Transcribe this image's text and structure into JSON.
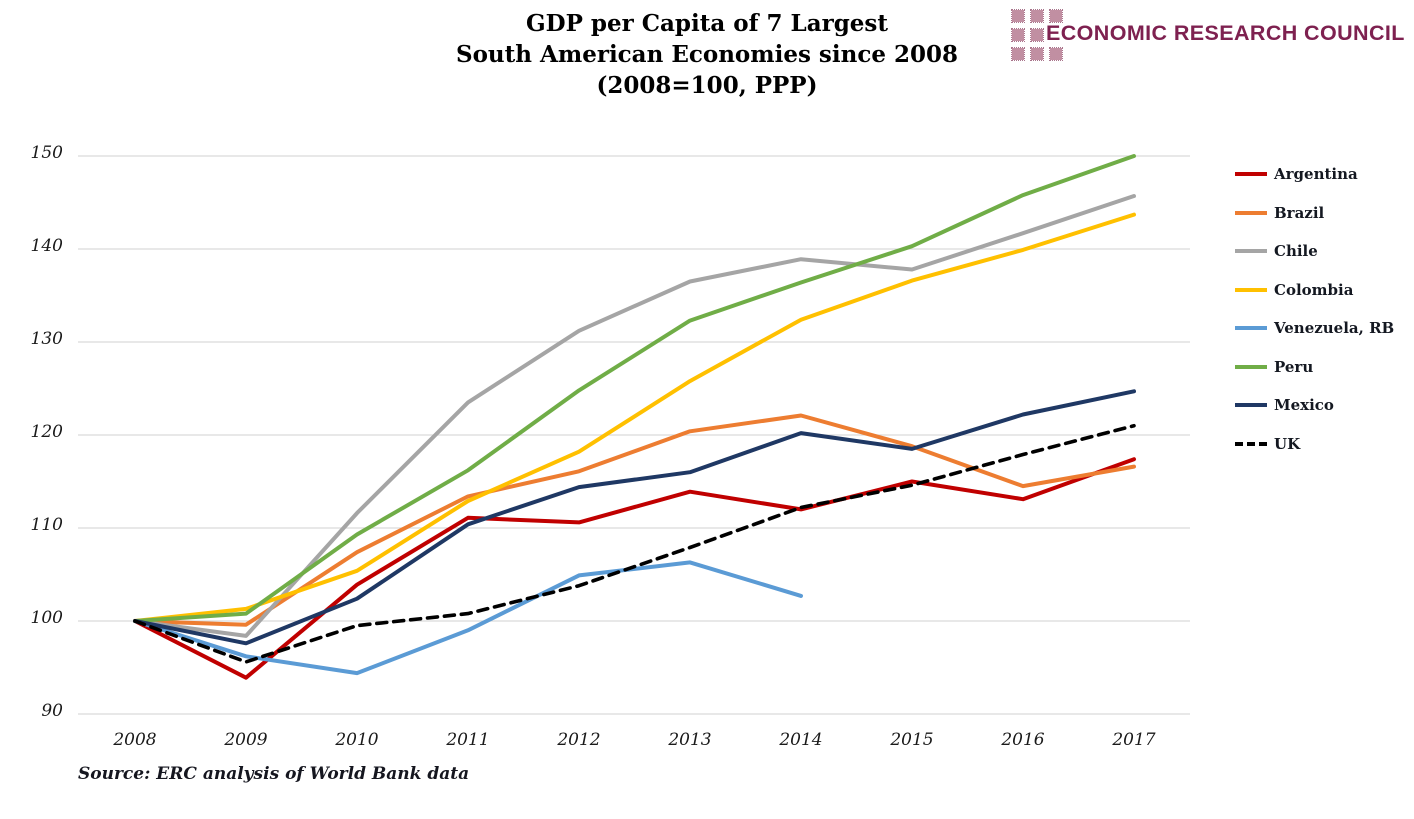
{
  "title": {
    "lines": [
      "GDP per Capita of 7 Largest",
      "South American Economies since 2008",
      "(2008=100, PPP)"
    ]
  },
  "logo": {
    "name": "economic-research-council-logo",
    "text": "ECONOMIC RESEARCH COUNCIL",
    "square_color": "#c18fa2",
    "text_color": "#7e2150",
    "square_rows": [
      3,
      2,
      3
    ]
  },
  "source_note": "Source: ERC analysis of World Bank data",
  "chart_data": {
    "type": "line",
    "title": "GDP per Capita of 7 Largest South American Economies since 2008 (2008=100, PPP)",
    "x": [
      2008,
      2009,
      2010,
      2011,
      2012,
      2013,
      2014,
      2015,
      2016,
      2017
    ],
    "xlabel": "",
    "ylabel": "",
    "ylim": [
      90,
      150
    ],
    "yticks": [
      90,
      100,
      110,
      120,
      130,
      140,
      150
    ],
    "grid": true,
    "gridline_color": "#d9d9d9",
    "legend_position": "right",
    "series": [
      {
        "name": "Argentina",
        "color": "#c00000",
        "dash": false,
        "values": [
          100,
          93.9,
          103.9,
          111.1,
          110.6,
          113.9,
          112.0,
          115.0,
          113.1,
          117.4
        ]
      },
      {
        "name": "Brazil",
        "color": "#ed7d31",
        "dash": false,
        "values": [
          100,
          99.6,
          107.4,
          113.4,
          116.1,
          120.4,
          122.1,
          118.8,
          114.5,
          116.6
        ]
      },
      {
        "name": "Chile",
        "color": "#a5a5a5",
        "dash": false,
        "values": [
          100,
          98.4,
          111.6,
          123.5,
          131.2,
          136.5,
          138.9,
          137.8,
          141.7,
          145.7
        ]
      },
      {
        "name": "Colombia",
        "color": "#ffc000",
        "dash": false,
        "values": [
          100,
          101.3,
          105.4,
          112.9,
          118.2,
          125.8,
          132.4,
          136.6,
          139.9,
          143.7
        ]
      },
      {
        "name": "Venezuela, RB",
        "color": "#5b9bd5",
        "dash": false,
        "values": [
          100,
          96.2,
          94.4,
          99.0,
          104.9,
          106.3,
          102.7,
          null,
          null,
          null
        ]
      },
      {
        "name": "Peru",
        "color": "#70ad47",
        "dash": false,
        "values": [
          100,
          100.8,
          109.3,
          116.2,
          124.8,
          132.3,
          136.4,
          140.3,
          145.8,
          150.0
        ]
      },
      {
        "name": "Mexico",
        "color": "#1f3864",
        "dash": false,
        "values": [
          100,
          97.6,
          102.4,
          110.4,
          114.4,
          116.0,
          120.2,
          118.5,
          122.2,
          124.7
        ]
      },
      {
        "name": "UK",
        "color": "#000000",
        "dash": true,
        "values": [
          100,
          95.6,
          99.5,
          100.8,
          103.8,
          107.9,
          112.2,
          114.6,
          117.9,
          121.0
        ]
      }
    ]
  }
}
